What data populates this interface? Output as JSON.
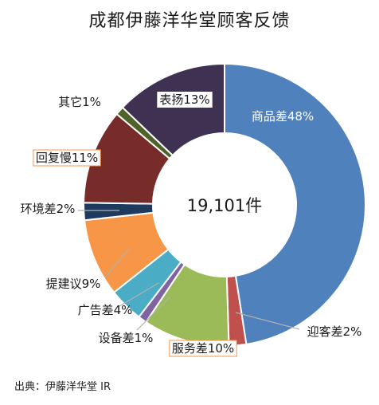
{
  "chart_data": {
    "type": "pie",
    "title": "成都伊藤洋华堂顾客反馈",
    "center_label": "19,101件",
    "slices": [
      {
        "label": "商品差48%",
        "value": 48,
        "color": "#4f81bd"
      },
      {
        "label": "迎客差2%",
        "value": 2,
        "color": "#c0504d"
      },
      {
        "label": "服务差10%",
        "value": 10,
        "color": "#9bbb59"
      },
      {
        "label": "设备差1%",
        "value": 1,
        "color": "#8064a2"
      },
      {
        "label": "广告差4%",
        "value": 4,
        "color": "#4bacc6"
      },
      {
        "label": "提建议9%",
        "value": 9,
        "color": "#f79646"
      },
      {
        "label": "环境差2%",
        "value": 2,
        "color": "#1f3a5f"
      },
      {
        "label": "回复慢11%",
        "value": 11,
        "color": "#772c2a"
      },
      {
        "label": "其它1%",
        "value": 1,
        "color": "#4f6228"
      },
      {
        "label": "表扬13%",
        "value": 13,
        "color": "#3f3151"
      }
    ]
  },
  "source": "出典：伊藤洋华堂 IR"
}
